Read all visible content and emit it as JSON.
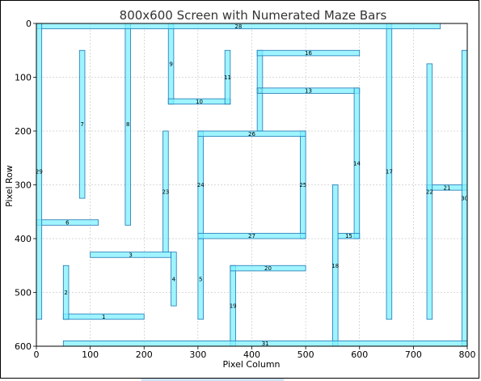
{
  "chart_data": {
    "type": "bar",
    "title": "800x600 Screen with Numerated Maze Bars",
    "xlabel": "Pixel Column",
    "ylabel": "Pixel Row",
    "xlim": [
      0,
      800
    ],
    "ylim": [
      600,
      0
    ],
    "y_inverted": true,
    "grid": true,
    "xticks": [
      0,
      100,
      200,
      300,
      400,
      500,
      600,
      700,
      800
    ],
    "yticks": [
      0,
      100,
      200,
      300,
      400,
      500,
      600
    ],
    "bar_color": "#7ff0ff",
    "edge_color": "#1f77b4",
    "bars": [
      {
        "label": "1",
        "x0": 50,
        "y0": 540,
        "x1": 200,
        "y1": 550
      },
      {
        "label": "2",
        "x0": 50,
        "y0": 450,
        "x1": 60,
        "y1": 550
      },
      {
        "label": "3",
        "x0": 100,
        "y0": 425,
        "x1": 250,
        "y1": 435
      },
      {
        "label": "4",
        "x0": 250,
        "y0": 425,
        "x1": 260,
        "y1": 525
      },
      {
        "label": "5",
        "x0": 300,
        "y0": 400,
        "x1": 310,
        "y1": 550
      },
      {
        "label": "6",
        "x0": 0,
        "y0": 365,
        "x1": 115,
        "y1": 375
      },
      {
        "label": "7",
        "x0": 80,
        "y0": 50,
        "x1": 90,
        "y1": 325
      },
      {
        "label": "8",
        "x0": 165,
        "y0": 0,
        "x1": 175,
        "y1": 375
      },
      {
        "label": "9",
        "x0": 245,
        "y0": 0,
        "x1": 255,
        "y1": 150
      },
      {
        "label": "10",
        "x0": 245,
        "y0": 140,
        "x1": 360,
        "y1": 150
      },
      {
        "label": "11",
        "x0": 350,
        "y0": 50,
        "x1": 360,
        "y1": 150
      },
      {
        "label": "12",
        "x0": 410,
        "y0": 50,
        "x1": 420,
        "y1": 200
      },
      {
        "label": "13",
        "x0": 410,
        "y0": 120,
        "x1": 600,
        "y1": 130
      },
      {
        "label": "14",
        "x0": 590,
        "y0": 120,
        "x1": 600,
        "y1": 400
      },
      {
        "label": "15",
        "x0": 560,
        "y0": 390,
        "x1": 600,
        "y1": 400
      },
      {
        "label": "16",
        "x0": 410,
        "y0": 50,
        "x1": 600,
        "y1": 60
      },
      {
        "label": "17",
        "x0": 650,
        "y0": 0,
        "x1": 660,
        "y1": 550
      },
      {
        "label": "18",
        "x0": 550,
        "y0": 300,
        "x1": 560,
        "y1": 600
      },
      {
        "label": "19",
        "x0": 360,
        "y0": 450,
        "x1": 370,
        "y1": 600
      },
      {
        "label": "20",
        "x0": 360,
        "y0": 450,
        "x1": 500,
        "y1": 460
      },
      {
        "label": "21",
        "x0": 725,
        "y0": 300,
        "x1": 800,
        "y1": 310
      },
      {
        "label": "22",
        "x0": 725,
        "y0": 75,
        "x1": 735,
        "y1": 550
      },
      {
        "label": "23",
        "x0": 235,
        "y0": 200,
        "x1": 245,
        "y1": 425
      },
      {
        "label": "24",
        "x0": 300,
        "y0": 200,
        "x1": 310,
        "y1": 400
      },
      {
        "label": "25",
        "x0": 490,
        "y0": 200,
        "x1": 500,
        "y1": 400
      },
      {
        "label": "26",
        "x0": 300,
        "y0": 200,
        "x1": 500,
        "y1": 210
      },
      {
        "label": "27",
        "x0": 300,
        "y0": 390,
        "x1": 500,
        "y1": 400
      },
      {
        "label": "28",
        "x0": 0,
        "y0": 0,
        "x1": 750,
        "y1": 10
      },
      {
        "label": "29",
        "x0": 0,
        "y0": 0,
        "x1": 10,
        "y1": 550
      },
      {
        "label": "30",
        "x0": 790,
        "y0": 50,
        "x1": 800,
        "y1": 600
      },
      {
        "label": "31",
        "x0": 50,
        "y0": 590,
        "x1": 800,
        "y1": 600
      }
    ]
  }
}
